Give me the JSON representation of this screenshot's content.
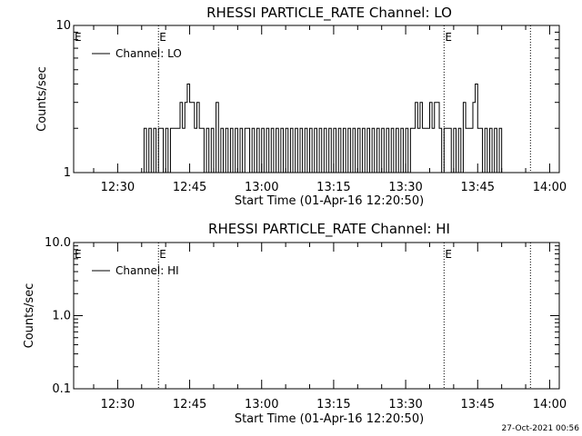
{
  "chart_data": [
    {
      "type": "line",
      "title": "RHESSI PARTICLE_RATE Channel: LO",
      "xlabel": "Start Time (01-Apr-16 12:20:50)",
      "ylabel": "Counts/sec",
      "y_scale": "log",
      "ylim": [
        1,
        10
      ],
      "xlim": [
        "12:20:50",
        "14:02:00"
      ],
      "y_ticks": [
        "1",
        "10"
      ],
      "x_ticks": [
        "12:30",
        "12:45",
        "13:00",
        "13:15",
        "13:30",
        "13:45",
        "14:00"
      ],
      "markers": [
        {
          "label": "E",
          "time": "12:38:30"
        },
        {
          "label": "E",
          "time": "13:38:00"
        },
        {
          "label": "",
          "time": "13:56:00"
        }
      ],
      "legend": {
        "placement": "top-left",
        "entries": [
          "Channel: LO"
        ]
      },
      "series": [
        {
          "name": "Channel: LO",
          "x": [
            "12:35:00",
            "12:35:30",
            "12:36:00",
            "12:36:30",
            "12:37:00",
            "12:37:30",
            "12:38:00",
            "12:38:30",
            "12:39:00",
            "12:39:30",
            "12:40:00",
            "12:40:30",
            "12:41:00",
            "12:41:30",
            "12:42:00",
            "12:42:30",
            "12:43:00",
            "12:43:30",
            "12:44:00",
            "12:44:30",
            "12:45:00",
            "12:45:30",
            "12:46:00",
            "12:46:30",
            "12:47:00",
            "12:47:30",
            "12:48:00",
            "12:48:30",
            "12:49:00",
            "12:49:30",
            "12:50:00",
            "12:50:30",
            "12:51:00",
            "12:51:30",
            "12:52:00",
            "12:52:30",
            "12:53:00",
            "12:53:30",
            "12:54:00",
            "12:54:30",
            "12:55:00",
            "12:55:30",
            "12:56:00",
            "12:56:30",
            "12:57:00",
            "12:57:30",
            "12:58:00",
            "12:58:30",
            "12:59:00",
            "12:59:30",
            "13:00:00",
            "13:00:30",
            "13:01:00",
            "13:01:30",
            "13:02:00",
            "13:02:30",
            "13:03:00",
            "13:03:30",
            "13:04:00",
            "13:04:30",
            "13:05:00",
            "13:05:30",
            "13:06:00",
            "13:06:30",
            "13:07:00",
            "13:07:30",
            "13:08:00",
            "13:08:30",
            "13:09:00",
            "13:09:30",
            "13:10:00",
            "13:10:30",
            "13:11:00",
            "13:11:30",
            "13:12:00",
            "13:12:30",
            "13:13:00",
            "13:13:30",
            "13:14:00",
            "13:14:30",
            "13:15:00",
            "13:15:30",
            "13:16:00",
            "13:16:30",
            "13:17:00",
            "13:17:30",
            "13:18:00",
            "13:18:30",
            "13:19:00",
            "13:19:30",
            "13:20:00",
            "13:20:30",
            "13:21:00",
            "13:21:30",
            "13:22:00",
            "13:22:30",
            "13:23:00",
            "13:23:30",
            "13:24:00",
            "13:24:30",
            "13:25:00",
            "13:25:30",
            "13:26:00",
            "13:26:30",
            "13:27:00",
            "13:27:30",
            "13:28:00",
            "13:28:30",
            "13:29:00",
            "13:29:30",
            "13:30:00",
            "13:30:30",
            "13:31:00",
            "13:31:30",
            "13:32:00",
            "13:32:30",
            "13:33:00",
            "13:33:30",
            "13:34:00",
            "13:34:30",
            "13:35:00",
            "13:35:30",
            "13:36:00",
            "13:36:30",
            "13:37:00",
            "13:37:30",
            "13:38:00",
            "13:38:30",
            "13:39:00",
            "13:39:30",
            "13:40:00",
            "13:40:30",
            "13:41:00",
            "13:41:30",
            "13:42:00",
            "13:42:30",
            "13:43:00",
            "13:43:30",
            "13:44:00",
            "13:44:30",
            "13:45:00",
            "13:45:30",
            "13:46:00",
            "13:46:30",
            "13:47:00",
            "13:47:30",
            "13:48:00",
            "13:48:30",
            "13:49:00",
            "13:49:30",
            "13:50:00"
          ],
          "values": [
            1,
            2,
            1,
            2,
            1,
            2,
            1,
            2,
            2,
            1,
            2,
            1,
            2,
            2,
            2,
            2,
            3,
            2,
            3,
            4,
            3,
            3,
            2,
            3,
            2,
            2,
            1,
            2,
            1,
            2,
            1,
            3,
            1,
            2,
            1,
            2,
            1,
            2,
            1,
            2,
            1,
            2,
            1,
            2,
            2,
            1,
            2,
            1,
            2,
            1,
            2,
            1,
            2,
            1,
            2,
            1,
            2,
            1,
            2,
            1,
            2,
            1,
            2,
            1,
            2,
            1,
            2,
            1,
            2,
            1,
            2,
            1,
            2,
            1,
            2,
            1,
            2,
            1,
            2,
            1,
            2,
            1,
            2,
            1,
            2,
            1,
            2,
            1,
            2,
            1,
            2,
            1,
            2,
            1,
            2,
            1,
            2,
            1,
            2,
            1,
            2,
            1,
            2,
            1,
            2,
            1,
            2,
            1,
            2,
            1,
            2,
            1,
            2,
            2,
            3,
            2,
            3,
            2,
            2,
            2,
            3,
            2,
            3,
            3,
            2,
            1,
            2,
            2,
            2,
            1,
            2,
            1,
            2,
            1,
            3,
            2,
            2,
            2,
            3,
            4,
            2,
            2,
            1,
            2,
            1,
            2,
            1,
            2,
            1,
            2,
            1
          ]
        }
      ]
    },
    {
      "type": "line",
      "title": "RHESSI PARTICLE_RATE Channel: HI",
      "xlabel": "Start Time (01-Apr-16 12:20:50)",
      "ylabel": "Counts/sec",
      "y_scale": "log",
      "ylim": [
        0.1,
        10
      ],
      "xlim": [
        "12:20:50",
        "14:02:00"
      ],
      "y_ticks": [
        "0.1",
        "1.0",
        "10.0"
      ],
      "x_ticks": [
        "12:30",
        "12:45",
        "13:00",
        "13:15",
        "13:30",
        "13:45",
        "14:00"
      ],
      "markers": [
        {
          "label": "E",
          "time": "12:38:30"
        },
        {
          "label": "E",
          "time": "13:38:00"
        },
        {
          "label": "",
          "time": "13:56:00"
        }
      ],
      "legend": {
        "placement": "top-left",
        "entries": [
          "Channel: HI"
        ]
      },
      "series": [
        {
          "name": "Channel: HI",
          "x": [],
          "values": []
        }
      ]
    }
  ],
  "footer": {
    "timestamp": "27-Oct-2021 00:56"
  }
}
